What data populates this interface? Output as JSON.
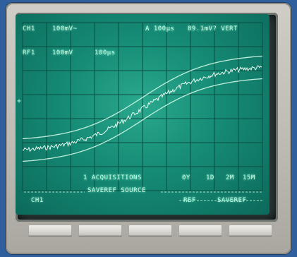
{
  "readout": {
    "ch1_label": "CH1",
    "ch1_scale": "100mV~",
    "timebase": "A 100µs",
    "trigger": "89.1mV? VERT",
    "ref_label": "RF1",
    "ref_vscale": "100mV",
    "ref_tscale": "100µs"
  },
  "menu": {
    "acquisitions": "1 ACQUISITIONS",
    "options": [
      "0Y",
      "1D",
      "2M",
      "15M"
    ],
    "saveref_source": "SAVEREF SOURCE",
    "labels": [
      "CH1",
      "REF",
      "SAVEREF"
    ]
  },
  "colors": {
    "trace": "#dcffee",
    "grid": "#0a4d42",
    "phosphor": "#c9ffe9"
  }
}
